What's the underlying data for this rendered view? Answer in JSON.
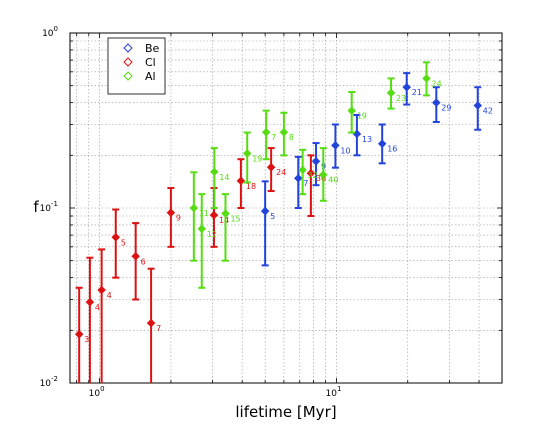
{
  "chart_data": {
    "type": "scatter",
    "title": "",
    "xlabel": "lifetime [Myr]",
    "ylabel": "f",
    "xscale": "log",
    "yscale": "log",
    "xlim": [
      0.75,
      50
    ],
    "ylim": [
      0.01,
      1
    ],
    "grid": true,
    "legend_position": "top-left",
    "x_ticks": [
      {
        "value": 1,
        "label": "10",
        "sup": "0"
      },
      {
        "value": 10,
        "label": "10",
        "sup": "1"
      }
    ],
    "y_ticks": [
      {
        "value": 0.01,
        "label": "10",
        "sup": "-2"
      },
      {
        "value": 0.1,
        "label": "10",
        "sup": "-1"
      },
      {
        "value": 1,
        "label": "10",
        "sup": "0"
      }
    ],
    "series": [
      {
        "name": "Be",
        "color": "#2244dd",
        "points": [
          {
            "x": 5.0,
            "y": 0.096,
            "lo": 0.047,
            "hi": 0.142,
            "label": "5"
          },
          {
            "x": 6.9,
            "y": 0.148,
            "lo": 0.1,
            "hi": 0.196,
            "label": "7"
          },
          {
            "x": 8.2,
            "y": 0.185,
            "lo": 0.135,
            "hi": 0.235,
            "label": "9"
          },
          {
            "x": 9.9,
            "y": 0.228,
            "lo": 0.17,
            "hi": 0.3,
            "label": "10"
          },
          {
            "x": 12.2,
            "y": 0.265,
            "lo": 0.2,
            "hi": 0.34,
            "label": "13"
          },
          {
            "x": 15.6,
            "y": 0.233,
            "lo": 0.18,
            "hi": 0.3,
            "label": "16"
          },
          {
            "x": 19.8,
            "y": 0.49,
            "lo": 0.39,
            "hi": 0.59,
            "label": "21"
          },
          {
            "x": 26.4,
            "y": 0.4,
            "lo": 0.31,
            "hi": 0.49,
            "label": "29"
          },
          {
            "x": 39.5,
            "y": 0.385,
            "lo": 0.28,
            "hi": 0.49,
            "label": "42"
          }
        ]
      },
      {
        "name": "Cl",
        "color": "#dd1111",
        "points": [
          {
            "x": 0.82,
            "y": 0.019,
            "lo": 0.0098,
            "hi": 0.035,
            "label": "3"
          },
          {
            "x": 0.91,
            "y": 0.029,
            "lo": 0.0098,
            "hi": 0.052,
            "label": "4"
          },
          {
            "x": 1.02,
            "y": 0.034,
            "lo": 0.0098,
            "hi": 0.058,
            "label": "4"
          },
          {
            "x": 1.17,
            "y": 0.068,
            "lo": 0.04,
            "hi": 0.098,
            "label": "5"
          },
          {
            "x": 1.42,
            "y": 0.053,
            "lo": 0.03,
            "hi": 0.082,
            "label": "6"
          },
          {
            "x": 1.65,
            "y": 0.022,
            "lo": 0.0098,
            "hi": 0.045,
            "label": "7"
          },
          {
            "x": 2.0,
            "y": 0.094,
            "lo": 0.06,
            "hi": 0.13,
            "label": "9"
          },
          {
            "x": 3.04,
            "y": 0.091,
            "lo": 0.06,
            "hi": 0.13,
            "label": "14"
          },
          {
            "x": 3.95,
            "y": 0.143,
            "lo": 0.1,
            "hi": 0.19,
            "label": "18"
          },
          {
            "x": 5.3,
            "y": 0.171,
            "lo": 0.125,
            "hi": 0.22,
            "label": "24"
          },
          {
            "x": 7.8,
            "y": 0.158,
            "lo": 0.09,
            "hi": 0.2,
            "label": "36"
          }
        ]
      },
      {
        "name": "Al",
        "color": "#55dd11",
        "points": [
          {
            "x": 2.5,
            "y": 0.1,
            "lo": 0.05,
            "hi": 0.16,
            "label": "11"
          },
          {
            "x": 2.7,
            "y": 0.076,
            "lo": 0.035,
            "hi": 0.12,
            "label": "12"
          },
          {
            "x": 3.05,
            "y": 0.161,
            "lo": 0.1,
            "hi": 0.22,
            "label": "14"
          },
          {
            "x": 3.4,
            "y": 0.093,
            "lo": 0.05,
            "hi": 0.12,
            "label": "15"
          },
          {
            "x": 4.2,
            "y": 0.205,
            "lo": 0.14,
            "hi": 0.27,
            "label": "19"
          },
          {
            "x": 5.05,
            "y": 0.271,
            "lo": 0.19,
            "hi": 0.36,
            "label": "7"
          },
          {
            "x": 6.0,
            "y": 0.271,
            "lo": 0.2,
            "hi": 0.35,
            "label": "8"
          },
          {
            "x": 7.2,
            "y": 0.165,
            "lo": 0.12,
            "hi": 0.215,
            "label": "32"
          },
          {
            "x": 8.8,
            "y": 0.155,
            "lo": 0.11,
            "hi": 0.22,
            "label": "40"
          },
          {
            "x": 11.6,
            "y": 0.36,
            "lo": 0.27,
            "hi": 0.46,
            "label": "19"
          },
          {
            "x": 17.0,
            "y": 0.455,
            "lo": 0.37,
            "hi": 0.55,
            "label": "23"
          },
          {
            "x": 24.0,
            "y": 0.55,
            "lo": 0.44,
            "hi": 0.68,
            "label": "24"
          }
        ]
      }
    ]
  }
}
